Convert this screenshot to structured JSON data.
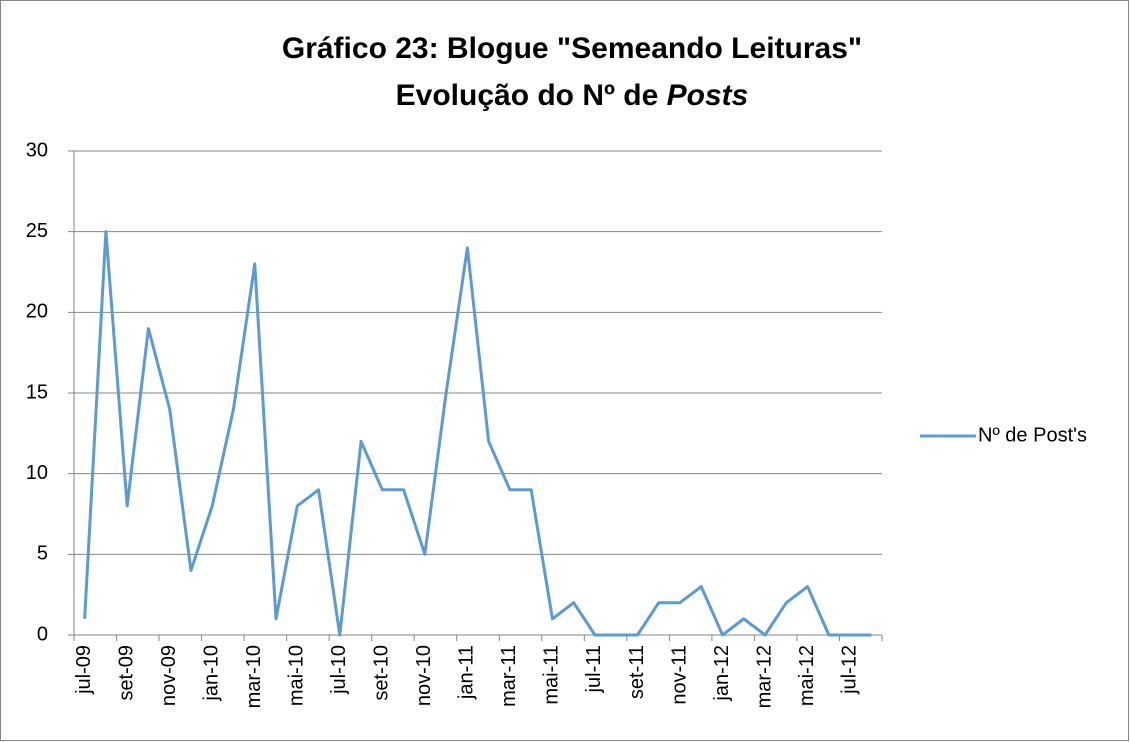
{
  "chart_data": {
    "type": "line",
    "title": [
      "Gráfico 23: Blogue \"Semeando Leituras\"",
      "Evolução do Nº de",
      "Posts"
    ],
    "categories": [
      "jul-09",
      null,
      "set-09",
      null,
      "nov-09",
      null,
      "jan-10",
      null,
      "mar-10",
      null,
      "mai-10",
      null,
      "jul-10",
      null,
      "set-10",
      null,
      "nov-10",
      null,
      "jan-11",
      null,
      "mar-11",
      null,
      "mai-11",
      null,
      "jul-11",
      null,
      "set-11",
      null,
      "nov-11",
      null,
      "jan-12",
      null,
      "mar-12",
      null,
      "mai-12",
      null,
      "jul-12",
      null
    ],
    "series": [
      {
        "name": "Nº de Post's",
        "color": "#5b9bd5",
        "values": [
          1,
          25,
          8,
          19,
          14,
          4,
          8,
          14,
          23,
          1,
          8,
          9,
          0,
          12,
          9,
          9,
          5,
          15,
          24,
          12,
          9,
          9,
          1,
          2,
          0,
          0,
          0,
          2,
          2,
          3,
          0,
          1,
          0,
          2,
          3,
          0,
          0,
          0
        ]
      }
    ],
    "ylim": [
      0,
      30
    ],
    "yticks": [
      0,
      5,
      10,
      15,
      20,
      25,
      30
    ],
    "grid": true,
    "legend": "right"
  }
}
